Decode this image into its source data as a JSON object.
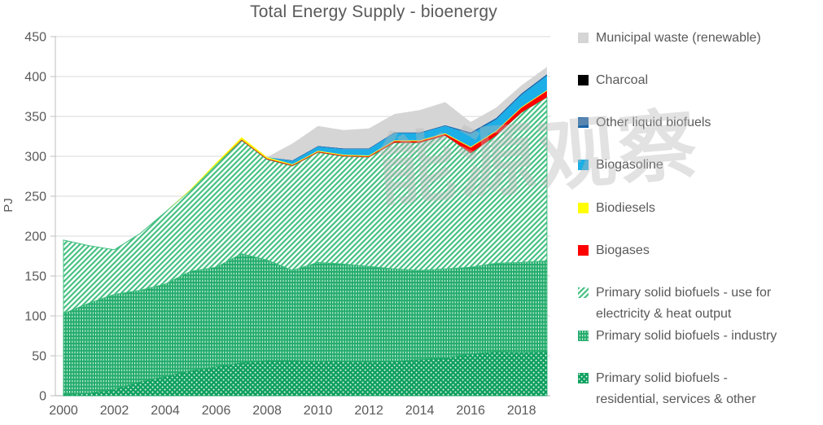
{
  "title": "Total Energy Supply - bioenergy",
  "watermark": "能源观察",
  "y_axis": {
    "label": "PJ",
    "min": 0,
    "max": 450,
    "step": 50,
    "ticks": [
      "0",
      "50",
      "100",
      "150",
      "200",
      "250",
      "300",
      "350",
      "400",
      "450"
    ]
  },
  "x_axis": {
    "ticks": [
      "2000",
      "2002",
      "2004",
      "2006",
      "2008",
      "2010",
      "2012",
      "2014",
      "2016",
      "2018"
    ]
  },
  "chart_data": {
    "type": "area",
    "stacked": true,
    "grid": "horizontal",
    "legend_position": "right",
    "title": "Total Energy Supply - bioenergy",
    "ylabel": "PJ",
    "ylim": [
      0,
      450
    ],
    "x": [
      2000,
      2001,
      2002,
      2003,
      2004,
      2005,
      2006,
      2007,
      2008,
      2009,
      2010,
      2011,
      2012,
      2013,
      2014,
      2015,
      2016,
      2017,
      2018,
      2019
    ],
    "series": [
      {
        "key": "residential",
        "name": "Primary solid biofuels - residential, services & other",
        "color": "#0FA05F",
        "pattern": "dots",
        "values": [
          1,
          3,
          8,
          17,
          24,
          31,
          36,
          41,
          44,
          44,
          43,
          43,
          42,
          43,
          45,
          47,
          52,
          55,
          54,
          55
        ]
      },
      {
        "key": "industry",
        "name": "Primary solid biofuels - industry",
        "color": "#22AC6B",
        "pattern": "vertical-dash",
        "values": [
          102,
          113,
          119,
          115,
          116,
          125,
          125,
          137,
          126,
          113,
          124,
          122,
          120,
          116,
          112,
          112,
          109,
          111,
          113,
          114
        ]
      },
      {
        "key": "electricity_heat",
        "name": "Primary solid biofuels - use for electricity & heat output",
        "color": "#3FBF7F",
        "pattern": "diagonal-hatch",
        "values": [
          92,
          72,
          56,
          71,
          90,
          102,
          129,
          142,
          126,
          131,
          138,
          135,
          137,
          158,
          160,
          167,
          143,
          160,
          188,
          205
        ]
      },
      {
        "key": "biogases",
        "name": "Biogases",
        "color": "#FE0000",
        "pattern": null,
        "values": [
          0,
          0,
          0,
          0,
          0,
          0,
          0,
          1,
          1,
          1,
          1,
          1,
          1,
          2,
          2,
          2,
          7,
          5,
          6,
          8
        ]
      },
      {
        "key": "biodiesels",
        "name": "Biodiesels",
        "color": "#FFFF00",
        "pattern": null,
        "values": [
          0,
          0,
          0,
          0,
          0,
          1,
          2,
          3,
          2,
          1,
          1,
          1,
          1,
          1,
          1,
          1,
          1,
          1,
          1,
          1
        ]
      },
      {
        "key": "biogasoline",
        "name": "Biogasoline",
        "color": "#1CAEE6",
        "pattern": null,
        "values": [
          0,
          0,
          0,
          0,
          0,
          0,
          0,
          0,
          0,
          4,
          5,
          7,
          8,
          9,
          9,
          9,
          16,
          14,
          15,
          18
        ]
      },
      {
        "key": "other_liquid_biofuels",
        "name": "Other liquid biofuels",
        "color": "#1763A9",
        "pattern": null,
        "values": [
          0,
          0,
          0,
          0,
          0,
          0,
          0,
          0,
          0,
          1,
          1,
          1,
          1,
          1,
          1,
          1,
          2,
          2,
          2,
          2
        ]
      },
      {
        "key": "charcoal",
        "name": "Charcoal",
        "color": "#000000",
        "pattern": null,
        "values": [
          0,
          0,
          0,
          0,
          0,
          0,
          0,
          0,
          0,
          0,
          0,
          0,
          0,
          0,
          0,
          0,
          0,
          0,
          0,
          0
        ]
      },
      {
        "key": "municipal_waste",
        "name": "Municipal waste (renewable)",
        "color": "#D5D5D5",
        "pattern": null,
        "values": [
          0,
          0,
          0,
          0,
          0,
          0,
          0,
          0,
          0,
          21,
          25,
          23,
          25,
          23,
          28,
          29,
          13,
          13,
          10,
          9
        ]
      }
    ]
  },
  "legend": {
    "items": [
      {
        "label": "Municipal waste (renewable)",
        "swatch": "municipal_waste"
      },
      {
        "label": "Charcoal",
        "swatch": "charcoal"
      },
      {
        "label": "Other liquid biofuels",
        "swatch": "other_liquid_biofuels"
      },
      {
        "label": "Biogasoline",
        "swatch": "biogasoline"
      },
      {
        "label": "Biodiesels",
        "swatch": "biodiesels"
      },
      {
        "label": "Biogases",
        "swatch": "biogases"
      },
      {
        "label": "Primary solid biofuels - use for\nelectricity & heat output",
        "swatch": "electricity_heat"
      },
      {
        "label": "Primary solid biofuels - industry",
        "swatch": "industry"
      },
      {
        "label": "Primary solid biofuels -\nresidential, services & other",
        "swatch": "residential"
      }
    ]
  },
  "colors": {
    "text": "#595959",
    "gridline": "#D9D9D9",
    "axis": "#BFBFBF"
  }
}
